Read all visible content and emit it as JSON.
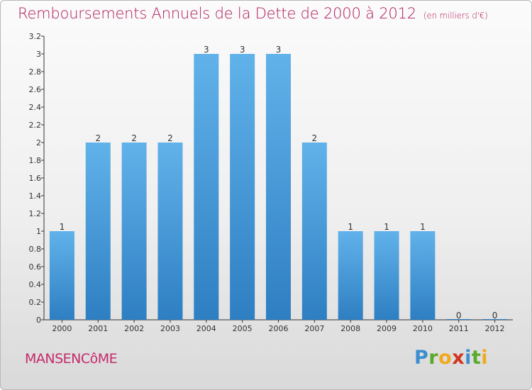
{
  "header": {
    "title": "Remboursements Annuels de la Dette de 2000 à 2012",
    "unit": "(en milliers d'€)"
  },
  "footer": {
    "commune": "MANSENCôME",
    "logo": "Proxiti"
  },
  "colors": {
    "title": "#b0195a",
    "bar_top": "#61b2ea",
    "bar_bottom": "#2e7fc2",
    "axis": "#333333"
  },
  "chart_data": {
    "type": "bar",
    "title": "Remboursements Annuels de la Dette de 2000 à 2012",
    "xlabel": "",
    "ylabel": "",
    "categories": [
      "2000",
      "2001",
      "2002",
      "2003",
      "2004",
      "2005",
      "2006",
      "2007",
      "2008",
      "2009",
      "2010",
      "2011",
      "2012"
    ],
    "values": [
      1,
      2,
      2,
      2,
      3,
      3,
      3,
      2,
      1,
      1,
      1,
      0,
      0
    ],
    "data_labels": [
      "1",
      "2",
      "2",
      "2",
      "3",
      "3",
      "3",
      "2",
      "1",
      "1",
      "1",
      "0",
      "0"
    ],
    "ylim": [
      0,
      3.2
    ],
    "yticks": [
      "0",
      "0.2",
      "0.4",
      "0.6",
      "0.8",
      "1",
      "1.2",
      "1.4",
      "1.6",
      "1.8",
      "2",
      "2.2",
      "2.4",
      "2.6",
      "2.8",
      "3",
      "3.2"
    ],
    "grid": false,
    "legend": "none"
  }
}
